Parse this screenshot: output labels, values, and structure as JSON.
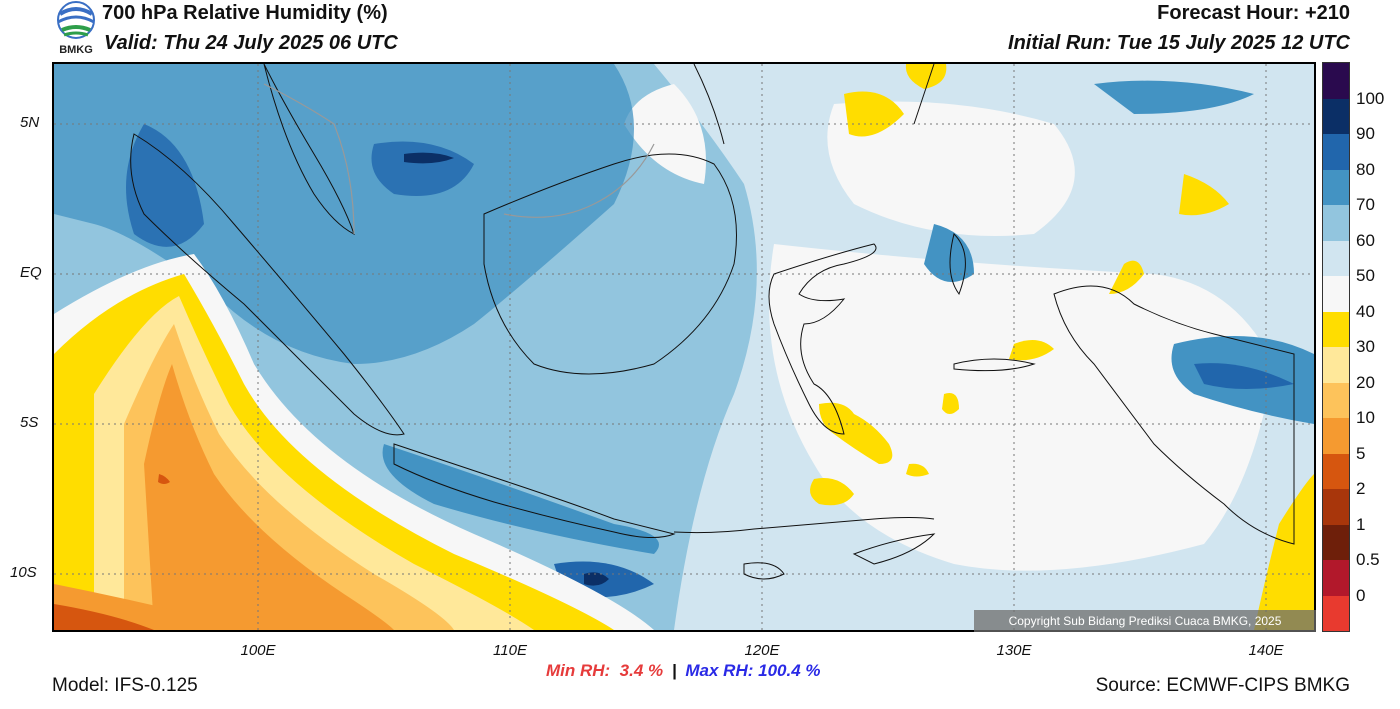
{
  "header": {
    "title": "700 hPa Relative Humidity (%)",
    "valid": "Valid: Thu 24 July 2025 06 UTC",
    "forecast_hour": "Forecast Hour: +210",
    "initial_run": "Initial Run: Tue 15 July 2025 12 UTC",
    "logo_text": "BMKG"
  },
  "map": {
    "lat_labels": [
      "5N",
      "EQ",
      "5S",
      "10S"
    ],
    "lon_labels": [
      "100E",
      "110E",
      "120E",
      "130E",
      "140E"
    ],
    "copyright": "Copyright Sub Bidang Prediksi Cuaca BMKG, 2025"
  },
  "colorbar": {
    "labels": [
      "100",
      "90",
      "80",
      "70",
      "60",
      "50",
      "40",
      "30",
      "20",
      "10",
      "5",
      "2",
      "1",
      "0.5",
      "0"
    ],
    "colors": [
      "#2a0a4e",
      "#0b2f66",
      "#2166ac",
      "#4393c3",
      "#92c5de",
      "#d1e5f0",
      "#f7f7f7",
      "#ffdd00",
      "#ffe89a",
      "#fdc35b",
      "#f59a30",
      "#d6560f",
      "#a8360b",
      "#6e1f0a",
      "#b2182b",
      "#e83a2f"
    ]
  },
  "stats": {
    "min_label": "Min RH:",
    "min_value": "3.4 %",
    "separator": "|",
    "max_label": "Max RH:",
    "max_value": "100.4 %"
  },
  "footer": {
    "model": "Model: IFS-0.125",
    "source": "Source: ECMWF-CIPS BMKG"
  }
}
